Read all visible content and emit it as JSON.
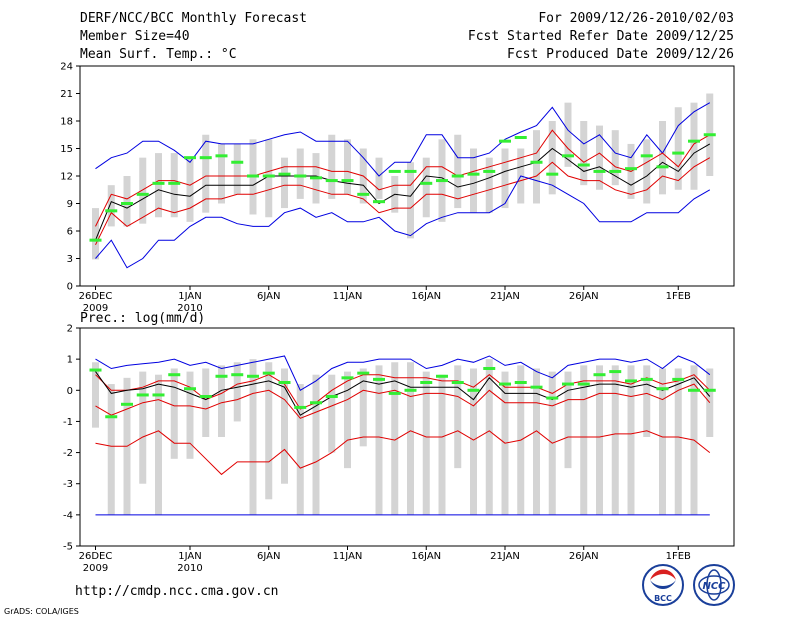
{
  "header": {
    "title": "DERF/NCC/BCC Monthly Forecast",
    "member_size": "Member Size=40",
    "variable": "Mean Surf. Temp.: °C",
    "period": "For 2009/12/26-2010/02/03",
    "started": "Fcst Started Refer Date 2009/12/25",
    "produced": "Fcst Produced Date 2009/12/26"
  },
  "footer": {
    "url": "http://cmdp.ncc.cma.gov.cn",
    "credit": "GrADS: COLA/IGES",
    "logo_bcc": "BCC",
    "logo_ncc": "NCC"
  },
  "colors": {
    "box": "#d4d4d4",
    "median": "#000000",
    "inner": "#e00000",
    "outer": "#0000e0",
    "obs": "#33ee33"
  },
  "chart_data": [
    {
      "type": "line",
      "title": "Mean Surf. Temp.: °C",
      "xlabel": "",
      "ylabel": "",
      "ylim": [
        0,
        24
      ],
      "yticks": [
        0,
        3,
        6,
        9,
        12,
        15,
        18,
        21,
        24
      ],
      "x_tick_labels": [
        {
          "day": 0,
          "label": "26DEC",
          "sub": "2009"
        },
        {
          "day": 6,
          "label": "1JAN",
          "sub": "2010"
        },
        {
          "day": 11,
          "label": "6JAN",
          "sub": ""
        },
        {
          "day": 16,
          "label": "11JAN",
          "sub": ""
        },
        {
          "day": 21,
          "label": "16JAN",
          "sub": ""
        },
        {
          "day": 26,
          "label": "21JAN",
          "sub": ""
        },
        {
          "day": 31,
          "label": "26JAN",
          "sub": ""
        },
        {
          "day": 37,
          "label": "1FEB",
          "sub": ""
        }
      ],
      "box_low": [
        2.9,
        6.5,
        6.5,
        6.8,
        7.5,
        7.5,
        7.0,
        8.0,
        9.0,
        10.0,
        7.8,
        7.5,
        8.5,
        9.5,
        9.0,
        9.5,
        10.0,
        9.0,
        9.5,
        8.0,
        5.2,
        7.5,
        7.0,
        8.5,
        8.0,
        8.0,
        8.5,
        9.0,
        9.0,
        10.0,
        13.0,
        11.0,
        10.5,
        11.0,
        9.5,
        9.0,
        10.0,
        10.5,
        10.5,
        12.0
      ],
      "box_high": [
        8.5,
        11.0,
        12.0,
        14.0,
        14.5,
        14.5,
        14.0,
        16.5,
        15.5,
        15.5,
        16.0,
        16.0,
        14.0,
        15.0,
        14.5,
        16.5,
        16.0,
        15.0,
        14.0,
        12.0,
        13.5,
        14.0,
        16.0,
        16.5,
        15.0,
        14.0,
        15.0,
        15.0,
        17.0,
        18.0,
        20.0,
        18.0,
        17.5,
        17.0,
        15.5,
        16.0,
        18.0,
        19.5,
        20.0,
        21.0
      ],
      "series": [
        {
          "name": "member-max",
          "color": "#0000e0",
          "values": [
            12.8,
            14.0,
            14.5,
            15.8,
            15.8,
            14.8,
            13.5,
            15.8,
            15.5,
            15.5,
            15.5,
            16.0,
            16.5,
            16.8,
            15.8,
            15.8,
            15.8,
            14.0,
            12.0,
            13.5,
            13.5,
            16.5,
            16.5,
            14.0,
            14.0,
            14.5,
            16.0,
            16.8,
            17.5,
            19.5,
            17.0,
            15.5,
            16.5,
            14.5,
            14.0,
            16.5,
            14.5,
            17.5,
            19.0,
            20.0
          ]
        },
        {
          "name": "upper-band",
          "color": "#e00000",
          "values": [
            6.5,
            10.0,
            9.5,
            10.5,
            11.5,
            11.5,
            11.0,
            12.0,
            12.0,
            12.0,
            12.0,
            12.5,
            13.0,
            13.0,
            13.0,
            12.5,
            12.5,
            12.0,
            10.5,
            11.0,
            11.0,
            13.0,
            13.0,
            12.0,
            12.5,
            13.0,
            13.5,
            14.0,
            14.5,
            17.0,
            15.0,
            13.5,
            14.5,
            13.0,
            12.5,
            13.5,
            14.5,
            13.0,
            15.5,
            16.5
          ]
        },
        {
          "name": "median",
          "color": "#000000",
          "values": [
            5.0,
            9.2,
            8.5,
            9.5,
            10.5,
            10.0,
            9.8,
            11.0,
            11.0,
            11.0,
            11.0,
            12.0,
            12.0,
            12.0,
            12.0,
            11.5,
            11.2,
            11.0,
            9.0,
            10.0,
            9.8,
            12.0,
            11.8,
            10.8,
            11.2,
            11.8,
            12.5,
            13.0,
            13.5,
            15.0,
            13.8,
            12.5,
            13.0,
            12.0,
            11.0,
            12.0,
            13.5,
            12.5,
            14.5,
            15.5
          ]
        },
        {
          "name": "lower-band",
          "color": "#e00000",
          "values": [
            4.5,
            8.0,
            6.5,
            7.5,
            8.5,
            8.0,
            8.5,
            9.5,
            9.5,
            10.0,
            10.0,
            10.5,
            11.0,
            11.0,
            10.5,
            10.0,
            10.0,
            9.5,
            8.0,
            8.5,
            8.5,
            10.0,
            10.0,
            9.5,
            10.0,
            10.5,
            11.0,
            11.5,
            12.0,
            13.5,
            12.0,
            11.5,
            11.5,
            10.5,
            10.0,
            10.5,
            12.0,
            11.5,
            13.0,
            14.0
          ]
        },
        {
          "name": "member-min",
          "color": "#0000e0",
          "values": [
            3.0,
            5.0,
            2.0,
            3.0,
            5.0,
            5.0,
            6.5,
            7.5,
            7.5,
            6.8,
            6.5,
            6.5,
            8.0,
            8.5,
            7.5,
            8.0,
            7.0,
            7.0,
            7.5,
            6.0,
            5.5,
            6.8,
            7.5,
            8.0,
            8.0,
            8.0,
            9.0,
            12.0,
            11.5,
            11.0,
            10.0,
            9.0,
            7.0,
            7.0,
            7.0,
            8.0,
            8.0,
            8.0,
            9.5,
            10.5
          ]
        },
        {
          "name": "observed",
          "color": "#33ee33",
          "values": [
            5.0,
            8.2,
            9.0,
            10.0,
            11.2,
            11.2,
            14.0,
            14.0,
            14.2,
            13.5,
            12.0,
            12.0,
            12.2,
            12.0,
            11.8,
            11.5,
            11.5,
            10.0,
            9.2,
            12.5,
            12.5,
            11.2,
            11.5,
            12.0,
            12.2,
            12.5,
            15.8,
            16.2,
            13.5,
            12.2,
            14.2,
            13.2,
            12.5,
            12.5,
            12.8,
            14.2,
            13.0,
            14.5,
            15.8,
            16.5
          ]
        }
      ]
    },
    {
      "type": "line",
      "title": "Prec.: log(mm/d)",
      "xlabel": "",
      "ylabel": "",
      "ylim": [
        -5,
        2
      ],
      "yticks": [
        -5,
        -4,
        -3,
        -2,
        -1,
        0,
        1,
        2
      ],
      "x_tick_labels": [
        {
          "day": 0,
          "label": "26DEC",
          "sub": "2009"
        },
        {
          "day": 6,
          "label": "1JAN",
          "sub": "2010"
        },
        {
          "day": 11,
          "label": "6JAN",
          "sub": ""
        },
        {
          "day": 16,
          "label": "11JAN",
          "sub": ""
        },
        {
          "day": 21,
          "label": "16JAN",
          "sub": ""
        },
        {
          "day": 26,
          "label": "21JAN",
          "sub": ""
        },
        {
          "day": 31,
          "label": "26JAN",
          "sub": ""
        },
        {
          "day": 37,
          "label": "1FEB",
          "sub": ""
        }
      ],
      "box_low": [
        -1.2,
        -4.0,
        -4.0,
        -3.0,
        -4.0,
        -2.2,
        -2.2,
        -1.5,
        -1.5,
        -1.0,
        -4.0,
        -3.5,
        -3.0,
        -4.0,
        -4.0,
        -2.0,
        -2.5,
        -1.8,
        -4.0,
        -4.0,
        -4.0,
        -4.0,
        -4.0,
        -2.5,
        -4.0,
        -4.0,
        -4.0,
        -4.0,
        -4.0,
        -4.0,
        -2.5,
        -4.0,
        -4.0,
        -4.0,
        -4.0,
        -1.5,
        -4.0,
        -4.0,
        -4.0,
        -1.5
      ],
      "box_high": [
        0.9,
        0.2,
        0.4,
        0.6,
        0.5,
        0.7,
        0.6,
        0.7,
        0.8,
        0.9,
        1.0,
        0.9,
        0.7,
        0.2,
        0.5,
        0.5,
        0.6,
        0.7,
        0.8,
        0.9,
        0.9,
        0.6,
        0.5,
        0.8,
        0.7,
        1.0,
        0.6,
        0.8,
        0.7,
        0.6,
        0.6,
        0.8,
        0.8,
        0.8,
        0.8,
        0.8,
        0.7,
        0.7,
        0.8,
        0.7
      ],
      "series": [
        {
          "name": "member-max",
          "color": "#0000e0",
          "values": [
            1.0,
            0.7,
            0.8,
            0.85,
            0.9,
            1.0,
            0.8,
            0.9,
            0.7,
            0.8,
            0.9,
            1.0,
            1.1,
            0.0,
            0.3,
            0.7,
            0.9,
            0.9,
            1.0,
            1.0,
            1.0,
            0.7,
            0.8,
            1.0,
            0.9,
            1.1,
            0.8,
            0.9,
            0.6,
            0.4,
            0.8,
            0.9,
            1.0,
            1.0,
            0.9,
            1.0,
            0.7,
            1.1,
            0.9,
            0.5
          ]
        },
        {
          "name": "upper-band",
          "color": "#e00000",
          "values": [
            0.5,
            0.0,
            0.0,
            0.1,
            0.3,
            0.3,
            0.1,
            -0.3,
            -0.1,
            0.2,
            0.3,
            0.5,
            0.2,
            -0.6,
            -0.4,
            0.0,
            0.3,
            0.5,
            0.5,
            0.4,
            0.4,
            0.4,
            0.3,
            0.3,
            0.1,
            0.5,
            0.1,
            0.1,
            0.1,
            -0.1,
            0.2,
            0.3,
            0.3,
            0.3,
            0.2,
            0.4,
            0.2,
            0.3,
            0.5,
            0.0
          ]
        },
        {
          "name": "median",
          "color": "#000000",
          "values": [
            0.6,
            -0.1,
            0.0,
            0.05,
            0.2,
            0.1,
            -0.1,
            -0.3,
            0.0,
            0.1,
            0.2,
            0.3,
            0.1,
            -0.8,
            -0.5,
            -0.2,
            0.0,
            0.3,
            0.2,
            0.3,
            0.1,
            0.1,
            0.1,
            0.1,
            -0.3,
            0.4,
            -0.1,
            -0.1,
            -0.1,
            -0.3,
            0.0,
            0.1,
            0.2,
            0.2,
            0.1,
            0.2,
            0.0,
            0.2,
            0.4,
            -0.2
          ]
        },
        {
          "name": "lower-band",
          "color": "#e00000",
          "values": [
            -0.5,
            -0.8,
            -0.6,
            -0.4,
            -0.3,
            -0.5,
            -0.5,
            -0.6,
            -0.4,
            -0.3,
            -0.1,
            0.0,
            -0.3,
            -0.9,
            -0.7,
            -0.5,
            -0.3,
            0.0,
            -0.1,
            0.0,
            -0.2,
            -0.1,
            -0.1,
            -0.2,
            -0.5,
            0.0,
            -0.4,
            -0.4,
            -0.4,
            -0.5,
            -0.3,
            -0.3,
            -0.1,
            -0.1,
            -0.2,
            -0.1,
            -0.3,
            0.0,
            0.2,
            -0.4
          ]
        },
        {
          "name": "member-min",
          "color": "#0000e0",
          "values": [
            -4.0,
            -4.0,
            -4.0,
            -4.0,
            -4.0,
            -4.0,
            -4.0,
            -4.0,
            -4.0,
            -4.0,
            -4.0,
            -4.0,
            -4.0,
            -4.0,
            -4.0,
            -4.0,
            -4.0,
            -4.0,
            -4.0,
            -4.0,
            -4.0,
            -4.0,
            -4.0,
            -4.0,
            -4.0,
            -4.0,
            -4.0,
            -4.0,
            -4.0,
            -4.0,
            -4.0,
            -4.0,
            -4.0,
            -4.0,
            -4.0,
            -4.0,
            -4.0,
            -4.0,
            -4.0,
            -4.0
          ]
        },
        {
          "name": "member-min-2",
          "color": "#e00000",
          "values": [
            -1.7,
            -1.8,
            -1.8,
            -1.5,
            -1.3,
            -1.7,
            -1.7,
            -2.2,
            -2.7,
            -2.3,
            -2.3,
            -2.3,
            -1.9,
            -2.5,
            -2.3,
            -2.0,
            -1.6,
            -1.5,
            -1.5,
            -1.6,
            -1.3,
            -1.5,
            -1.5,
            -1.3,
            -1.6,
            -1.3,
            -1.7,
            -1.6,
            -1.3,
            -1.7,
            -1.5,
            -1.5,
            -1.5,
            -1.4,
            -1.4,
            -1.3,
            -1.5,
            -1.5,
            -1.6,
            -2.0
          ]
        },
        {
          "name": "observed",
          "color": "#33ee33",
          "values": [
            0.65,
            -0.85,
            -0.45,
            -0.15,
            -0.15,
            0.5,
            0.05,
            -0.2,
            0.45,
            0.5,
            0.45,
            0.55,
            0.25,
            -0.55,
            -0.4,
            -0.2,
            0.4,
            0.55,
            0.35,
            -0.1,
            0.0,
            0.25,
            0.45,
            0.25,
            0.0,
            0.7,
            0.2,
            0.25,
            0.1,
            -0.25,
            0.2,
            0.2,
            0.5,
            0.6,
            0.3,
            0.35,
            0.05,
            0.35,
            0.0,
            0.0
          ]
        }
      ]
    }
  ]
}
